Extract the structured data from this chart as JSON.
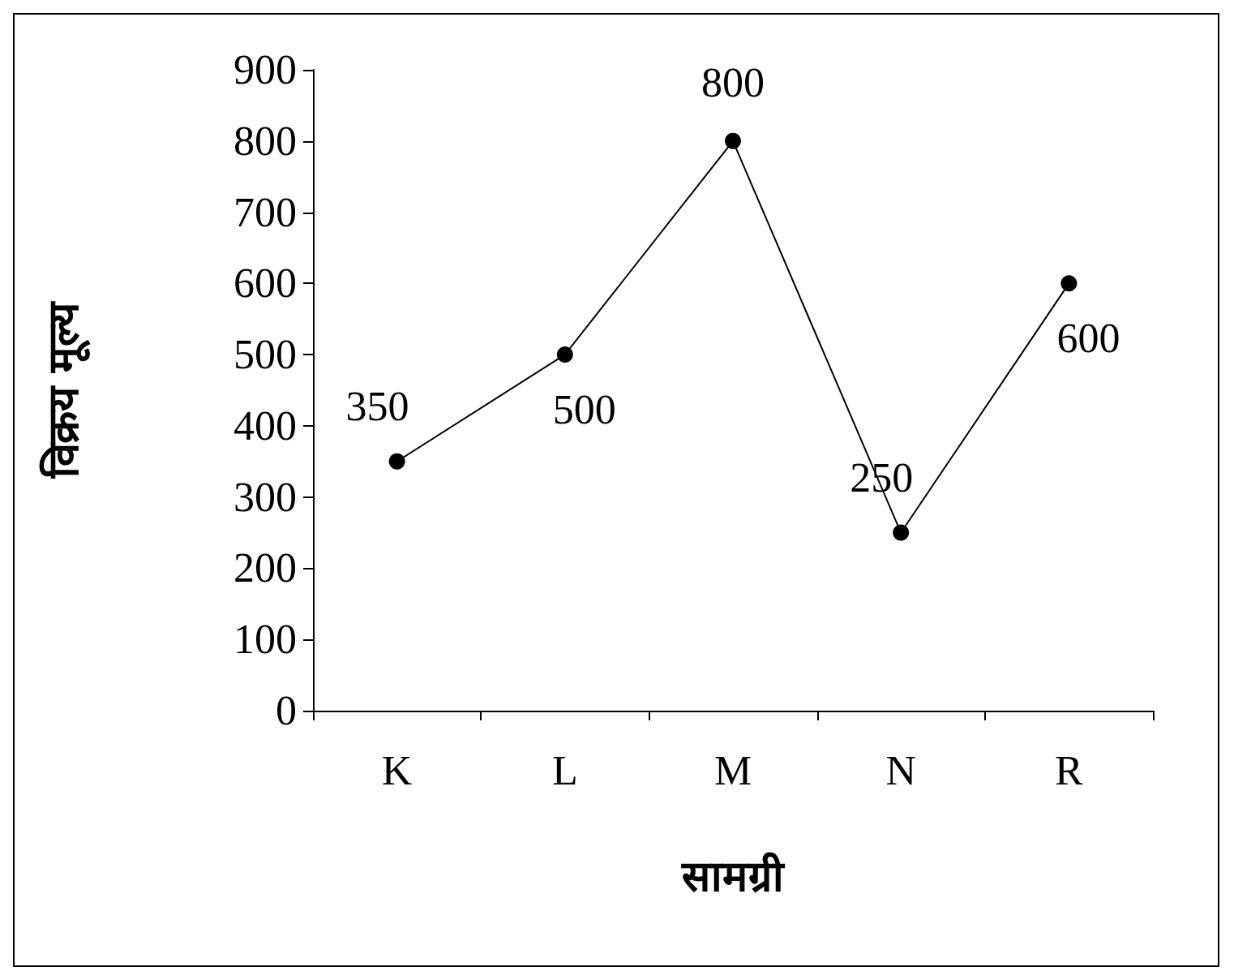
{
  "chart_data": {
    "type": "line",
    "xlabel": "सामग्री",
    "ylabel": "विक्रय मूल्य",
    "categories": [
      "K",
      "L",
      "M",
      "N",
      "R"
    ],
    "series": [
      {
        "color": "#000000",
        "values": [
          350,
          500,
          800,
          250,
          600
        ]
      }
    ],
    "ylim": [
      0,
      900
    ],
    "yticks": [
      0,
      100,
      200,
      300,
      400,
      500,
      600,
      700,
      800,
      900
    ],
    "grid": false,
    "marker": "circle",
    "line_style": "solid",
    "data_labels": true
  }
}
